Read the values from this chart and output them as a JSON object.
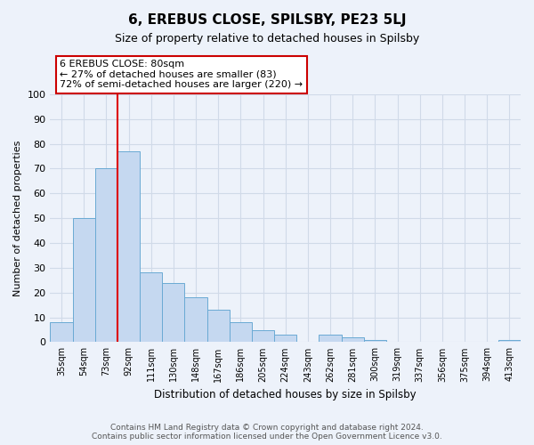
{
  "title": "6, EREBUS CLOSE, SPILSBY, PE23 5LJ",
  "subtitle": "Size of property relative to detached houses in Spilsby",
  "xlabel": "Distribution of detached houses by size in Spilsby",
  "ylabel": "Number of detached properties",
  "categories": [
    "35sqm",
    "54sqm",
    "73sqm",
    "92sqm",
    "111sqm",
    "130sqm",
    "148sqm",
    "167sqm",
    "186sqm",
    "205sqm",
    "224sqm",
    "243sqm",
    "262sqm",
    "281sqm",
    "300sqm",
    "319sqm",
    "337sqm",
    "356sqm",
    "375sqm",
    "394sqm",
    "413sqm"
  ],
  "bar_values": [
    8,
    50,
    70,
    77,
    28,
    24,
    18,
    13,
    8,
    5,
    3,
    0,
    3,
    2,
    1,
    0,
    0,
    0,
    0,
    0,
    1
  ],
  "bar_color": "#c5d8f0",
  "bar_edge_color": "#6aaad4",
  "vline_color": "#dd0000",
  "vline_x": 2.5,
  "annotation_box_text": "6 EREBUS CLOSE: 80sqm\n← 27% of detached houses are smaller (83)\n72% of semi-detached houses are larger (220) →",
  "ylim": [
    0,
    100
  ],
  "yticks": [
    0,
    10,
    20,
    30,
    40,
    50,
    60,
    70,
    80,
    90,
    100
  ],
  "background_color": "#edf2fa",
  "grid_color": "#d0dae8",
  "footer_line1": "Contains HM Land Registry data © Crown copyright and database right 2024.",
  "footer_line2": "Contains public sector information licensed under the Open Government Licence v3.0."
}
